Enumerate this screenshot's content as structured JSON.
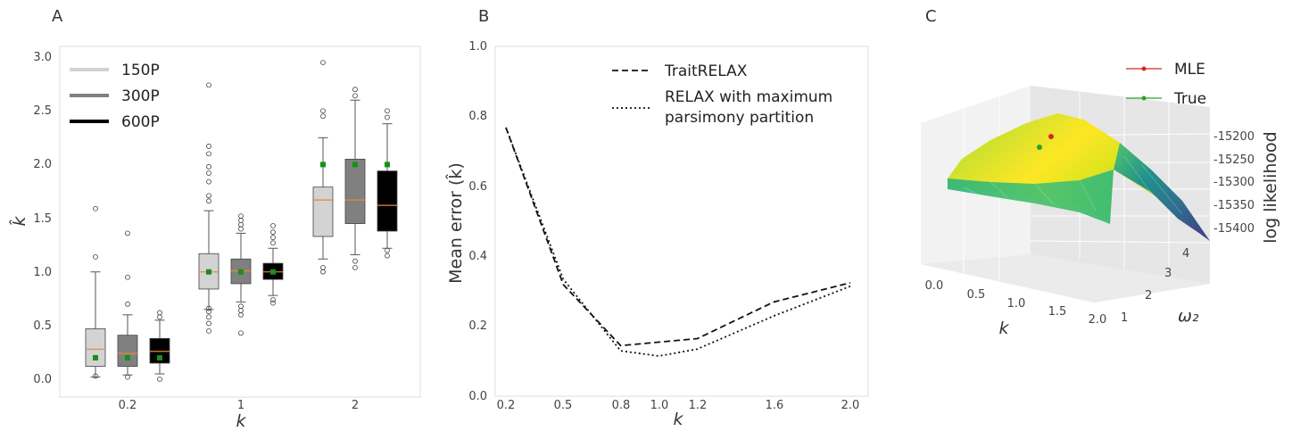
{
  "figure": {
    "panels": [
      "A",
      "B",
      "C"
    ]
  },
  "chart_data": [
    {
      "panel": "A",
      "type": "box",
      "categories": [
        "0.2",
        "1",
        "2"
      ],
      "xlabel": "k",
      "ylabel": "k̂",
      "ylim": [
        -0.1,
        3.1
      ],
      "yticks": [
        "0.0",
        "0.5",
        "1.0",
        "1.5",
        "2.0",
        "2.5",
        "3.0"
      ],
      "legend_position": "top-left",
      "series": [
        {
          "name": "150P",
          "color": "#d3d3d3",
          "boxes": [
            {
              "q1": 0.12,
              "median": 0.28,
              "q3": 0.47,
              "whislo": 0.02,
              "whishi": 1.0,
              "mean": 0.2,
              "fliers": [
                0.03,
                1.14,
                1.59
              ]
            },
            {
              "q1": 0.84,
              "median": 1.0,
              "q3": 1.17,
              "whislo": 0.65,
              "whishi": 1.57,
              "mean": 1.0,
              "fliers": [
                0.45,
                0.52,
                0.58,
                0.63,
                0.66,
                1.66,
                1.71,
                1.84,
                1.92,
                1.98,
                2.1,
                2.17,
                2.74
              ]
            },
            {
              "q1": 1.33,
              "median": 1.67,
              "q3": 1.79,
              "whislo": 1.12,
              "whishi": 2.25,
              "mean": 2.0,
              "fliers": [
                1.0,
                1.04,
                2.45,
                2.5,
                2.95
              ]
            }
          ]
        },
        {
          "name": "300P",
          "color": "#808080",
          "boxes": [
            {
              "q1": 0.12,
              "median": 0.24,
              "q3": 0.41,
              "whislo": 0.04,
              "whishi": 0.6,
              "mean": 0.2,
              "fliers": [
                0.02,
                0.7,
                0.95,
                1.36
              ]
            },
            {
              "q1": 0.89,
              "median": 1.01,
              "q3": 1.12,
              "whislo": 0.72,
              "whishi": 1.36,
              "mean": 1.0,
              "fliers": [
                0.43,
                0.6,
                0.64,
                0.68,
                1.4,
                1.44,
                1.48,
                1.52
              ]
            },
            {
              "q1": 1.45,
              "median": 1.67,
              "q3": 2.05,
              "whislo": 1.16,
              "whishi": 2.6,
              "mean": 2.0,
              "fliers": [
                1.04,
                1.1,
                2.64,
                2.7
              ]
            }
          ]
        },
        {
          "name": "600P",
          "color": "#000000",
          "boxes": [
            {
              "q1": 0.15,
              "median": 0.26,
              "q3": 0.38,
              "whislo": 0.05,
              "whishi": 0.55,
              "mean": 0.2,
              "fliers": [
                0.0,
                0.58,
                0.62
              ]
            },
            {
              "q1": 0.93,
              "median": 1.0,
              "q3": 1.08,
              "whislo": 0.78,
              "whishi": 1.22,
              "mean": 1.0,
              "fliers": [
                0.71,
                0.74,
                1.27,
                1.32,
                1.37,
                1.43
              ]
            },
            {
              "q1": 1.38,
              "median": 1.62,
              "q3": 1.94,
              "whislo": 1.22,
              "whishi": 2.38,
              "mean": 2.0,
              "fliers": [
                1.15,
                1.2,
                2.44,
                2.5
              ]
            }
          ]
        }
      ]
    },
    {
      "panel": "B",
      "type": "line",
      "x": [
        0.2,
        0.5,
        0.8,
        1.0,
        1.2,
        1.6,
        2.0
      ],
      "xticks": [
        "0.2",
        "0.5",
        "0.8",
        "1.0",
        "1.2",
        "1.6",
        "2.0"
      ],
      "xlabel": "k",
      "ylabel": "Mean error (k̂)",
      "ylim": [
        0.0,
        1.0
      ],
      "yticks": [
        "0.0",
        "0.2",
        "0.4",
        "0.6",
        "0.8",
        "1.0"
      ],
      "legend_position": "top-right",
      "series": [
        {
          "name": "TraitRELAX",
          "style": "dashed",
          "values": [
            0.77,
            0.32,
            0.145,
            0.155,
            0.165,
            0.27,
            0.325
          ]
        },
        {
          "name": [
            "RELAX with maximum",
            "parsimony partition"
          ],
          "style": "dotted",
          "values": [
            0.77,
            0.335,
            0.13,
            0.115,
            0.135,
            0.23,
            0.315
          ]
        }
      ]
    },
    {
      "panel": "C",
      "type": "surface",
      "xlabel": "k",
      "ylabel": "ω₂",
      "zlabel": "log likelihood",
      "xticks": [
        "0.0",
        "0.5",
        "1.0",
        "1.5",
        "2.0"
      ],
      "yticks": [
        "1",
        "2",
        "3",
        "4"
      ],
      "zticks": [
        "-15200",
        "-15250",
        "-15300",
        "-15350",
        "-15400"
      ],
      "legend": [
        {
          "name": "MLE",
          "color": "#d62728"
        },
        {
          "name": "True",
          "color": "#2ca02c"
        }
      ],
      "colormap": "viridis"
    }
  ]
}
